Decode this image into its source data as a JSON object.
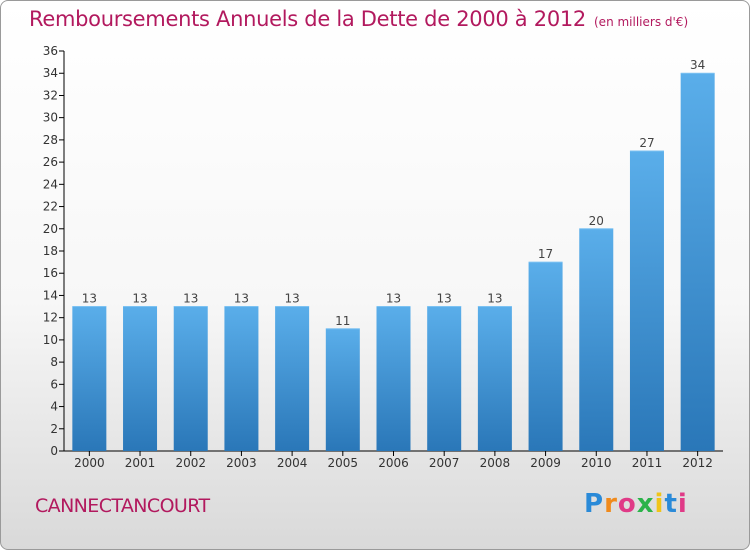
{
  "header": {
    "title": "Remboursements Annuels de la Dette de 2000 à 2012",
    "subtitle": "(en milliers d'€)"
  },
  "footer": {
    "commune": "CANNECTANCOURT",
    "logo_text": "Proxiti",
    "logo_letters": [
      "P",
      "r",
      "o",
      "x",
      "i",
      "t",
      "i"
    ],
    "logo_colors": [
      "#2a8ad8",
      "#f08a1c",
      "#e03a87",
      "#2bb34a",
      "#f0c419",
      "#2a8ad8",
      "#e03a87"
    ]
  },
  "colors": {
    "title": "#b2195e",
    "bar_light": "#5aaeea",
    "bar_dark": "#2a77b8",
    "axis": "#000000"
  },
  "chart_data": {
    "type": "bar",
    "title": "Remboursements Annuels de la Dette de 2000 à 2012",
    "subtitle": "(en milliers d'€)",
    "categories": [
      "2000",
      "2001",
      "2002",
      "2003",
      "2004",
      "2005",
      "2006",
      "2007",
      "2008",
      "2009",
      "2010",
      "2011",
      "2012"
    ],
    "values": [
      13,
      13,
      13,
      13,
      13,
      11,
      13,
      13,
      13,
      17,
      20,
      27,
      34
    ],
    "data_labels": [
      "13",
      "13",
      "13",
      "13",
      "13",
      "11",
      "13",
      "13",
      "13",
      "17",
      "20",
      "27",
      "34"
    ],
    "ylim": [
      0,
      36
    ],
    "yticks": [
      "0",
      "2",
      "4",
      "6",
      "8",
      "10",
      "12",
      "14",
      "16",
      "18",
      "20",
      "22",
      "24",
      "26",
      "28",
      "30",
      "32",
      "34",
      "36"
    ],
    "grid": false,
    "xlabel": "",
    "ylabel": ""
  }
}
